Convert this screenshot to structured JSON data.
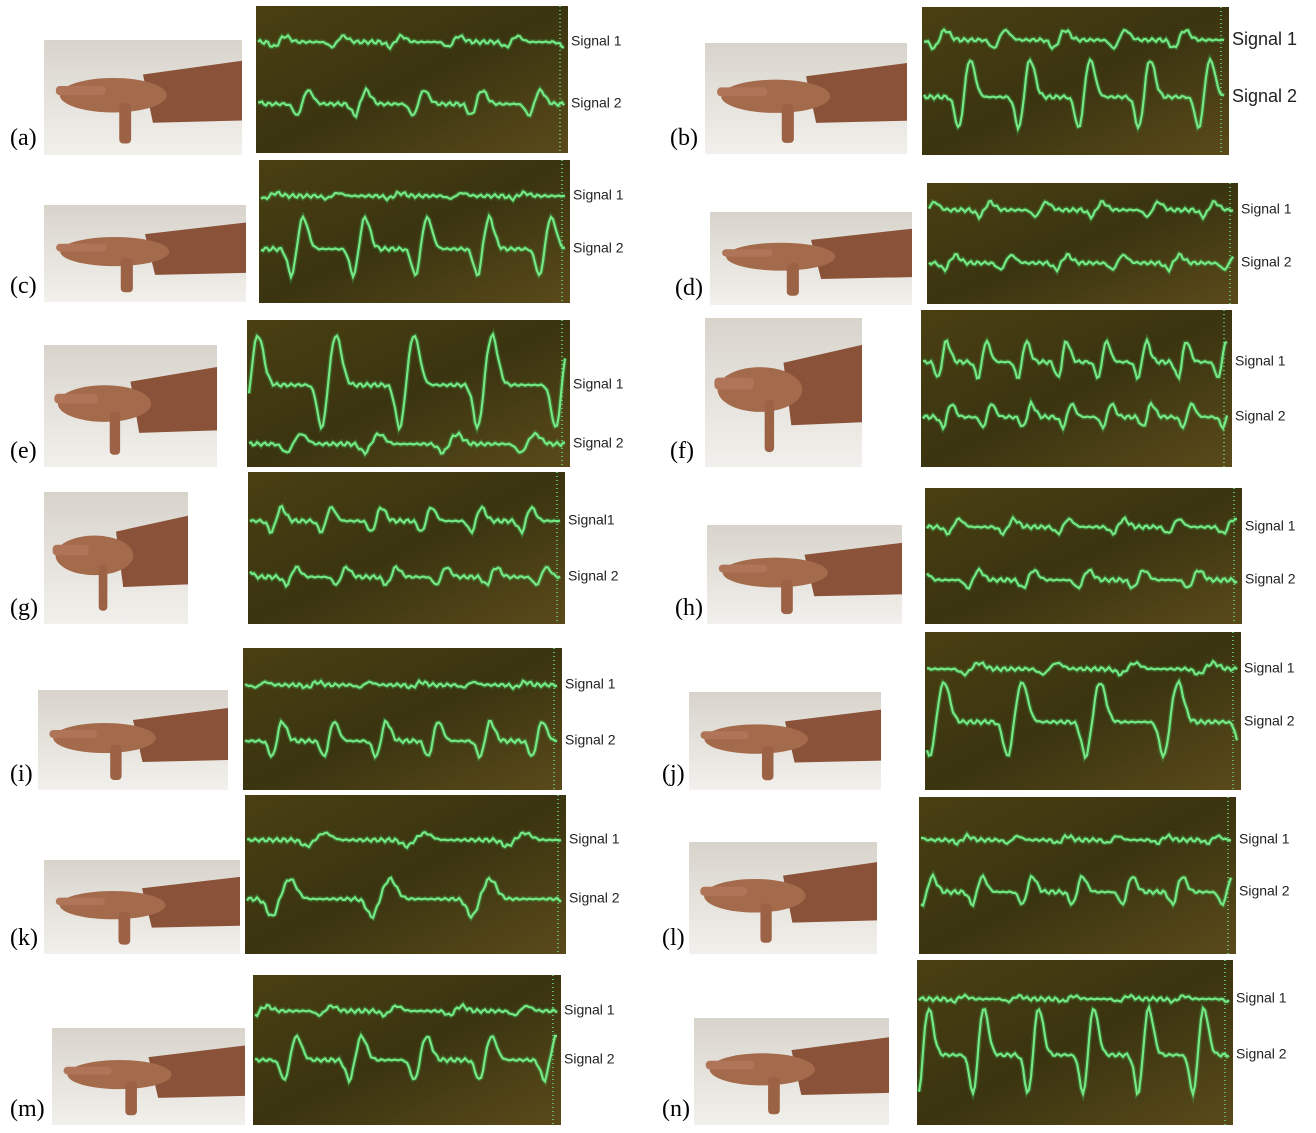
{
  "panels": [
    {
      "label": "(a)",
      "signal_1": "Signal 1",
      "signal_2": "Signal 2"
    },
    {
      "label": "(b)",
      "signal_1": "Signal 1",
      "signal_2": "Signal 2"
    },
    {
      "label": "(c)",
      "signal_1": "Signal 1",
      "signal_2": "Signal 2"
    },
    {
      "label": "(d)",
      "signal_1": "Signal 1",
      "signal_2": "Signal 2"
    },
    {
      "label": "(e)",
      "signal_1": "Signal 1",
      "signal_2": "Signal 2"
    },
    {
      "label": "(f)",
      "signal_1": "Signal 1",
      "signal_2": "Signal 2"
    },
    {
      "label": "(g)",
      "signal_1": "Signal1",
      "signal_2": "Signal 2"
    },
    {
      "label": "(h)",
      "signal_1": "Signal 1",
      "signal_2": "Signal 2"
    },
    {
      "label": "(i)",
      "signal_1": "Signal 1",
      "signal_2": "Signal 2"
    },
    {
      "label": "(j)",
      "signal_1": "Signal 1",
      "signal_2": "Signal 2"
    },
    {
      "label": "(k)",
      "signal_1": "Signal 1",
      "signal_2": "Signal 2"
    },
    {
      "label": "(l)",
      "signal_1": "Signal 1",
      "signal_2": "Signal 2"
    },
    {
      "label": "(m)",
      "signal_1": "Signal 1",
      "signal_2": "Signal 2"
    },
    {
      "label": "(n)",
      "signal_1": "Signal 1",
      "signal_2": "Signal 2"
    }
  ]
}
